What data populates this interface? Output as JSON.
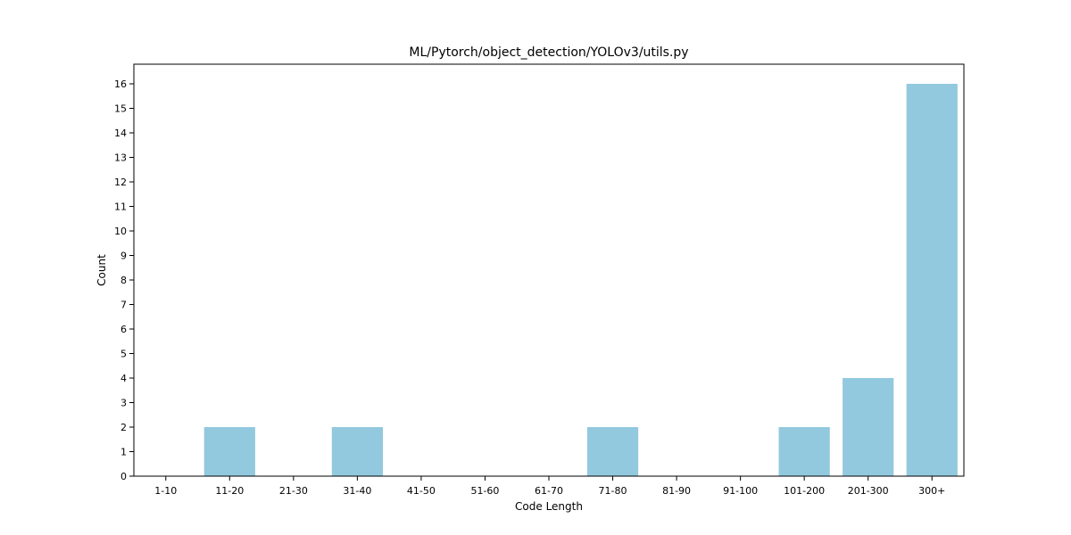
{
  "chart_data": {
    "type": "bar",
    "title": "ML/Pytorch/object_detection/YOLOv3/utils.py",
    "xlabel": "Code Length",
    "ylabel": "Count",
    "categories": [
      "1-10",
      "11-20",
      "21-30",
      "31-40",
      "41-50",
      "51-60",
      "61-70",
      "71-80",
      "81-90",
      "91-100",
      "101-200",
      "201-300",
      "300+"
    ],
    "values": [
      0,
      2,
      0,
      2,
      0,
      0,
      0,
      2,
      0,
      0,
      2,
      4,
      16
    ],
    "ylim": [
      0,
      16.8
    ],
    "yticks": [
      0,
      1,
      2,
      3,
      4,
      5,
      6,
      7,
      8,
      9,
      10,
      11,
      12,
      13,
      14,
      15,
      16
    ],
    "bar_color": "#92c9de",
    "grid": false,
    "legend": "none"
  }
}
